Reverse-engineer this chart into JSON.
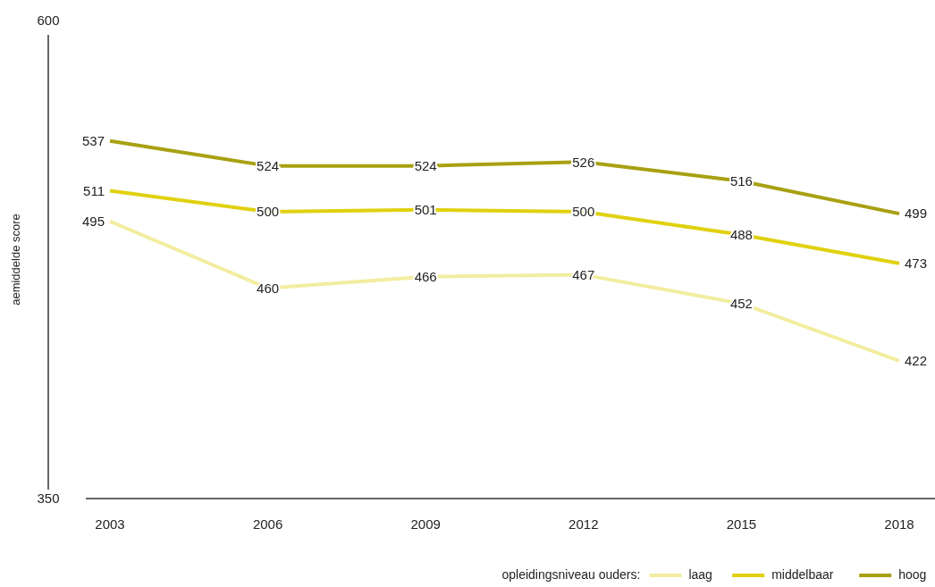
{
  "chart_data": {
    "type": "line",
    "ylabel": "aemiddelde score",
    "legend_title": "opleidingsniveau ouders:",
    "categories": [
      "2003",
      "2006",
      "2009",
      "2012",
      "2015",
      "2018"
    ],
    "series": [
      {
        "name": "laag",
        "color": "#f2eda0",
        "values": [
          495,
          460,
          466,
          467,
          452,
          422
        ]
      },
      {
        "name": "middelbaar",
        "color": "#e0d10f",
        "values": [
          511,
          500,
          501,
          500,
          488,
          473
        ]
      },
      {
        "name": "hoog",
        "color": "#a8a012",
        "values": [
          537,
          524,
          524,
          526,
          516,
          499
        ]
      }
    ],
    "ylim": [
      350,
      600
    ],
    "yticks": [
      350,
      600
    ],
    "data_labels": true,
    "legend": "bottom right",
    "grid": false,
    "line_style": "solid"
  }
}
